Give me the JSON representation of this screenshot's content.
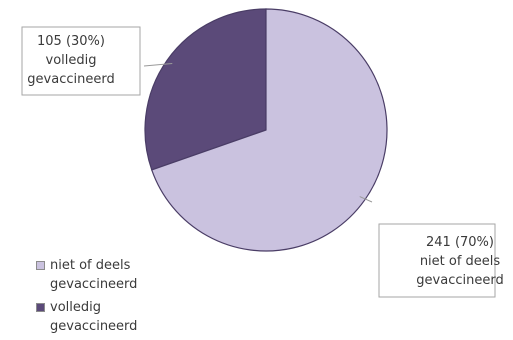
{
  "chart_data": {
    "type": "pie",
    "series": [
      {
        "name": "",
        "slices": [
          {
            "label": "volledig gevaccineerd",
            "value": 105,
            "percent": "30%",
            "callout_lines": [
              "105 (30%)",
              "volledig",
              "gevaccineerd"
            ],
            "legend_label": "volledig gevaccineerd",
            "color": "#5b4a79"
          },
          {
            "label": "niet of deels gevaccineerd",
            "value": 241,
            "percent": "70%",
            "callout_lines": [
              "241 (70%)",
              "niet of deels",
              "gevaccineerd"
            ],
            "legend_label": "niet of deels gevaccineerd",
            "color": "#cac2df"
          }
        ]
      }
    ],
    "legend_order": [
      1,
      0
    ],
    "legend_position": "bottom-left",
    "start_angle_deg": 0,
    "direction": "counterclockwise",
    "title": ""
  }
}
